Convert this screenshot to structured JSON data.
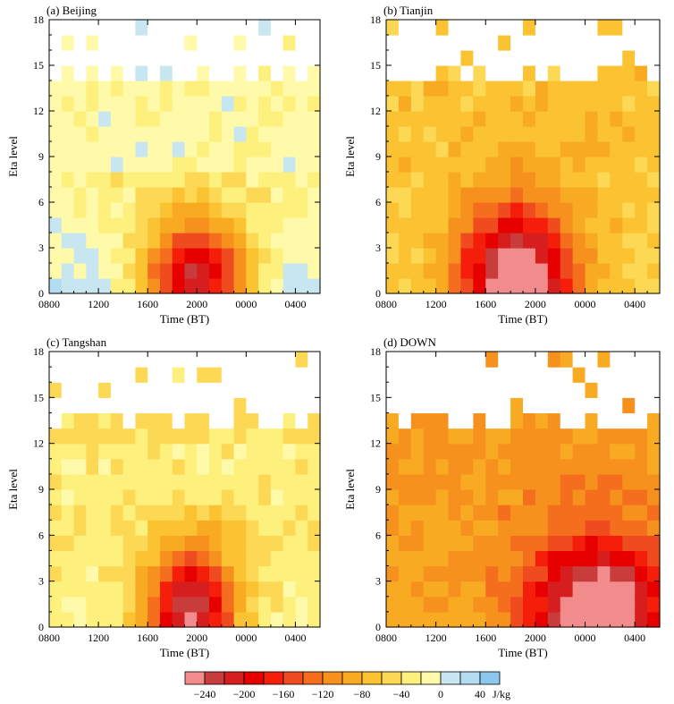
{
  "colors": {
    "palette": [
      "#f28c8c",
      "#c83c3c",
      "#d71e1e",
      "#e60000",
      "#f51e0a",
      "#f04b1e",
      "#f46e1e",
      "#f7911e",
      "#f9aa23",
      "#fbc232",
      "#fdd855",
      "#fdf07d",
      "#fffaaa",
      "#c8e6f0",
      "#b4dcf0",
      "#8cc8ee"
    ],
    "blank": "#ffffff"
  },
  "chart_data": {
    "type": "heatmap",
    "x_tick_labels_a": [
      "0800",
      "1200",
      "1600",
      "2000",
      "0000",
      "0400"
    ],
    "x_tick_labels_d": [
      "0800",
      "1200",
      "1600",
      "2000",
      "0000",
      "0400"
    ],
    "y_tick_labels": [
      "0",
      "3",
      "6",
      "9",
      "12",
      "15",
      "18"
    ],
    "xlabel": "Time (BT)",
    "ylabel": "Eta level",
    "panels": [
      {
        "id": "a",
        "title": "(a)  Beijing",
        "x_ticks": [
          "0800",
          "1200",
          "1600",
          "2000",
          "0000",
          "0400"
        ],
        "field": {
          "bx": 12.0,
          "by": 0.8,
          "sx": 3.2,
          "sy": 3.0,
          "amp": -230,
          "bg": -35,
          "lowbg": 20,
          "cutoff_y": 14,
          "upper": "blue"
        }
      },
      {
        "id": "b",
        "title": "(b)  Tianjin",
        "x_ticks": [
          "0800",
          "1200",
          "1600",
          "2000",
          "0000",
          "0400"
        ],
        "field": {
          "bx": 10.5,
          "by": 0.6,
          "sx": 3.2,
          "sy": 3.6,
          "amp": -225,
          "bg": -70,
          "lowbg": -55,
          "cutoff_y": 14,
          "upper": "yellow"
        }
      },
      {
        "id": "c",
        "title": "(c)  Tangshan",
        "x_ticks": [
          "0800",
          "1200",
          "1600",
          "2000",
          "0000",
          "0400"
        ],
        "field": {
          "bx": 11.5,
          "by": 0.8,
          "sx": 2.6,
          "sy": 3.2,
          "amp": -220,
          "bg": -45,
          "lowbg": -20,
          "cutoff_y": 13,
          "upper": "mixed"
        }
      },
      {
        "id": "d",
        "title": "(d)  DOWN",
        "x_ticks": [
          "0800",
          "1200",
          "1600",
          "2000",
          "0000",
          "0400"
        ],
        "field": {
          "bx": 17.0,
          "by": 0.8,
          "sx": 3.8,
          "sy": 3.4,
          "amp": -190,
          "bg": -105,
          "lowbg": -95,
          "cutoff_y": 13,
          "upper": "orange"
        }
      }
    ],
    "colorbar": {
      "levels": [
        -280,
        -260,
        -240,
        -220,
        -200,
        -180,
        -160,
        -140,
        -120,
        -100,
        -80,
        -60,
        -40,
        -20,
        0,
        20,
        40,
        60
      ],
      "labels": [
        "−240",
        "−200",
        "−160",
        "−120",
        "−80",
        "−40",
        "0",
        "40"
      ],
      "label_values": [
        -240,
        -200,
        -160,
        -120,
        -80,
        -40,
        0,
        40
      ],
      "unit": "J/kg"
    }
  }
}
